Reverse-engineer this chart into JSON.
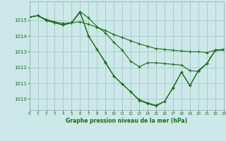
{
  "background_color": "#cce8e8",
  "grid_color": "#aacccc",
  "line_color": "#1a6b1a",
  "marker_color": "#1a6b1a",
  "title": "Graphe pression niveau de la mer (hPa)",
  "xlim": [
    0,
    23
  ],
  "ylim": [
    1009.3,
    1016.2
  ],
  "yticks": [
    1010,
    1011,
    1012,
    1013,
    1014,
    1015
  ],
  "xticks": [
    0,
    1,
    2,
    3,
    4,
    5,
    6,
    7,
    8,
    9,
    10,
    11,
    12,
    13,
    14,
    15,
    16,
    17,
    18,
    19,
    20,
    21,
    22,
    23
  ],
  "series": [
    {
      "x": [
        0,
        1,
        2,
        3,
        4,
        5,
        6,
        7,
        8,
        9,
        10,
        11,
        12,
        13,
        14,
        15,
        16,
        17,
        18,
        19,
        20,
        21,
        22,
        23
      ],
      "y": [
        1015.2,
        1015.3,
        1015.05,
        1014.9,
        1014.8,
        1014.85,
        1014.9,
        1014.75,
        1014.55,
        1014.35,
        1014.1,
        1013.9,
        1013.7,
        1013.5,
        1013.35,
        1013.2,
        1013.15,
        1013.1,
        1013.05,
        1013.0,
        1013.0,
        1012.95,
        1013.1,
        1013.1
      ]
    },
    {
      "x": [
        0,
        1,
        2,
        3,
        4,
        5,
        6,
        7,
        8,
        9,
        10,
        11,
        12,
        13,
        14,
        15,
        16,
        17,
        18,
        19,
        20,
        21,
        22,
        23
      ],
      "y": [
        1015.2,
        1015.3,
        1015.0,
        1014.85,
        1014.7,
        1014.85,
        1015.55,
        1015.15,
        1014.6,
        1014.2,
        1013.6,
        1013.1,
        1012.4,
        1012.05,
        1012.3,
        1012.3,
        1012.25,
        1012.2,
        1012.15,
        1011.8,
        1011.75,
        1012.25,
        1013.1,
        1013.15
      ]
    },
    {
      "x": [
        0,
        1,
        2,
        3,
        4,
        5,
        6,
        7,
        8,
        9,
        10,
        11,
        12,
        13,
        14,
        15,
        16,
        17,
        18,
        19,
        20,
        21,
        22,
        23
      ],
      "y": [
        1015.2,
        1015.3,
        1015.0,
        1014.85,
        1014.7,
        1014.85,
        1015.5,
        1014.0,
        1013.15,
        1012.35,
        1011.45,
        1010.95,
        1010.45,
        1009.95,
        1009.75,
        1009.6,
        1009.85,
        1010.75,
        1011.7,
        1010.85,
        1011.8,
        1012.25,
        1013.1,
        1013.15
      ]
    },
    {
      "x": [
        0,
        1,
        2,
        3,
        4,
        5,
        6,
        7,
        8,
        9,
        10,
        11,
        12,
        13,
        14,
        15,
        16,
        17,
        18,
        19,
        20,
        21,
        22,
        23
      ],
      "y": [
        1015.2,
        1015.3,
        1015.0,
        1014.85,
        1014.7,
        1014.85,
        1015.55,
        1014.0,
        1013.15,
        1012.3,
        1011.45,
        1010.95,
        1010.45,
        1009.9,
        1009.7,
        1009.55,
        1009.85,
        1010.7,
        1011.7,
        1010.85,
        1011.8,
        1012.25,
        1013.1,
        1013.15
      ]
    }
  ]
}
